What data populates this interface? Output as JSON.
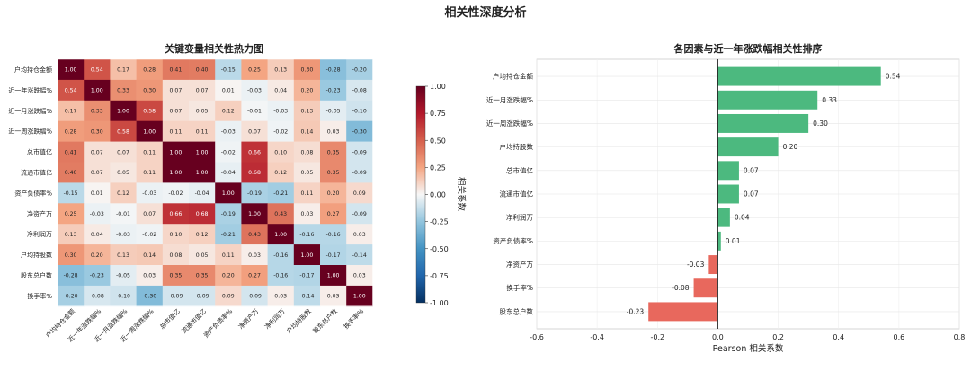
{
  "figure": {
    "title": "相关性深度分析"
  },
  "chart_data": [
    {
      "type": "heatmap",
      "title": "关键变量相关性热力图",
      "labels": [
        "户均持仓金额",
        "近一年涨跌幅%",
        "近一月涨跌幅%",
        "近一周涨跌幅%",
        "总市值亿",
        "流通市值亿",
        "资产负债率%",
        "净资产万",
        "净利润万",
        "户均持股数",
        "股东总户数",
        "换手率%"
      ],
      "matrix": [
        [
          1.0,
          0.54,
          0.17,
          0.28,
          0.41,
          0.4,
          -0.15,
          0.25,
          0.13,
          0.3,
          -0.28,
          -0.2
        ],
        [
          0.54,
          1.0,
          0.33,
          0.3,
          0.07,
          0.07,
          0.01,
          -0.03,
          0.04,
          0.2,
          -0.23,
          -0.08
        ],
        [
          0.17,
          0.33,
          1.0,
          0.58,
          0.07,
          0.05,
          0.12,
          -0.01,
          -0.03,
          0.13,
          -0.05,
          -0.1
        ],
        [
          0.28,
          0.3,
          0.58,
          1.0,
          0.11,
          0.11,
          -0.03,
          0.07,
          -0.02,
          0.14,
          0.03,
          -0.3
        ],
        [
          0.41,
          0.07,
          0.07,
          0.11,
          1.0,
          1.0,
          -0.02,
          0.66,
          0.1,
          0.08,
          0.35,
          -0.09
        ],
        [
          0.4,
          0.07,
          0.05,
          0.11,
          1.0,
          1.0,
          -0.04,
          0.68,
          0.12,
          0.05,
          0.35,
          -0.09
        ],
        [
          -0.15,
          0.01,
          0.12,
          -0.03,
          -0.02,
          -0.04,
          1.0,
          -0.19,
          -0.21,
          0.11,
          0.2,
          0.09
        ],
        [
          0.25,
          -0.03,
          -0.01,
          0.07,
          0.66,
          0.68,
          -0.19,
          1.0,
          0.43,
          0.03,
          0.27,
          -0.09
        ],
        [
          0.13,
          0.04,
          -0.03,
          -0.02,
          0.1,
          0.12,
          -0.21,
          0.43,
          1.0,
          -0.16,
          -0.16,
          0.03
        ],
        [
          0.3,
          0.2,
          0.13,
          0.14,
          0.08,
          0.05,
          0.11,
          0.03,
          -0.16,
          1.0,
          -0.17,
          -0.14
        ],
        [
          -0.28,
          -0.23,
          -0.05,
          0.03,
          0.35,
          0.35,
          0.2,
          0.27,
          -0.16,
          -0.17,
          1.0,
          0.03
        ],
        [
          -0.2,
          -0.08,
          -0.1,
          -0.3,
          -0.09,
          -0.09,
          0.09,
          -0.09,
          0.03,
          -0.14,
          0.03,
          1.0
        ]
      ],
      "colorbar": {
        "label": "相关系数",
        "range": [
          -1.0,
          1.0
        ],
        "ticks": [
          "1.00",
          "0.75",
          "0.50",
          "0.25",
          "0.00",
          "-0.25",
          "-0.50",
          "-0.75",
          "-1.00"
        ]
      }
    },
    {
      "type": "bar",
      "orientation": "horizontal",
      "title": "各因素与近一年涨跌幅相关性排序",
      "xlabel": "Pearson 相关系数",
      "xlim": [
        -0.6,
        0.8
      ],
      "xticks": [
        "-0.6",
        "-0.4",
        "-0.2",
        "0.0",
        "0.2",
        "0.4",
        "0.6",
        "0.8"
      ],
      "categories": [
        "户均持仓金额",
        "近一月涨跌幅%",
        "近一周涨跌幅%",
        "户均持股数",
        "总市值亿",
        "流通市值亿",
        "净利润万",
        "资产负债率%",
        "净资产万",
        "换手率%",
        "股东总户数"
      ],
      "values": [
        0.54,
        0.33,
        0.3,
        0.2,
        0.07,
        0.07,
        0.04,
        0.01,
        -0.03,
        -0.08,
        -0.23
      ],
      "value_labels": [
        "0.54",
        "0.33",
        "0.30",
        "0.20",
        "0.07",
        "0.07",
        "0.04",
        "0.01",
        "-0.03",
        "-0.08",
        "-0.23"
      ],
      "colors": {
        "positive": "#4cb97f",
        "negative": "#e8685d"
      }
    }
  ]
}
